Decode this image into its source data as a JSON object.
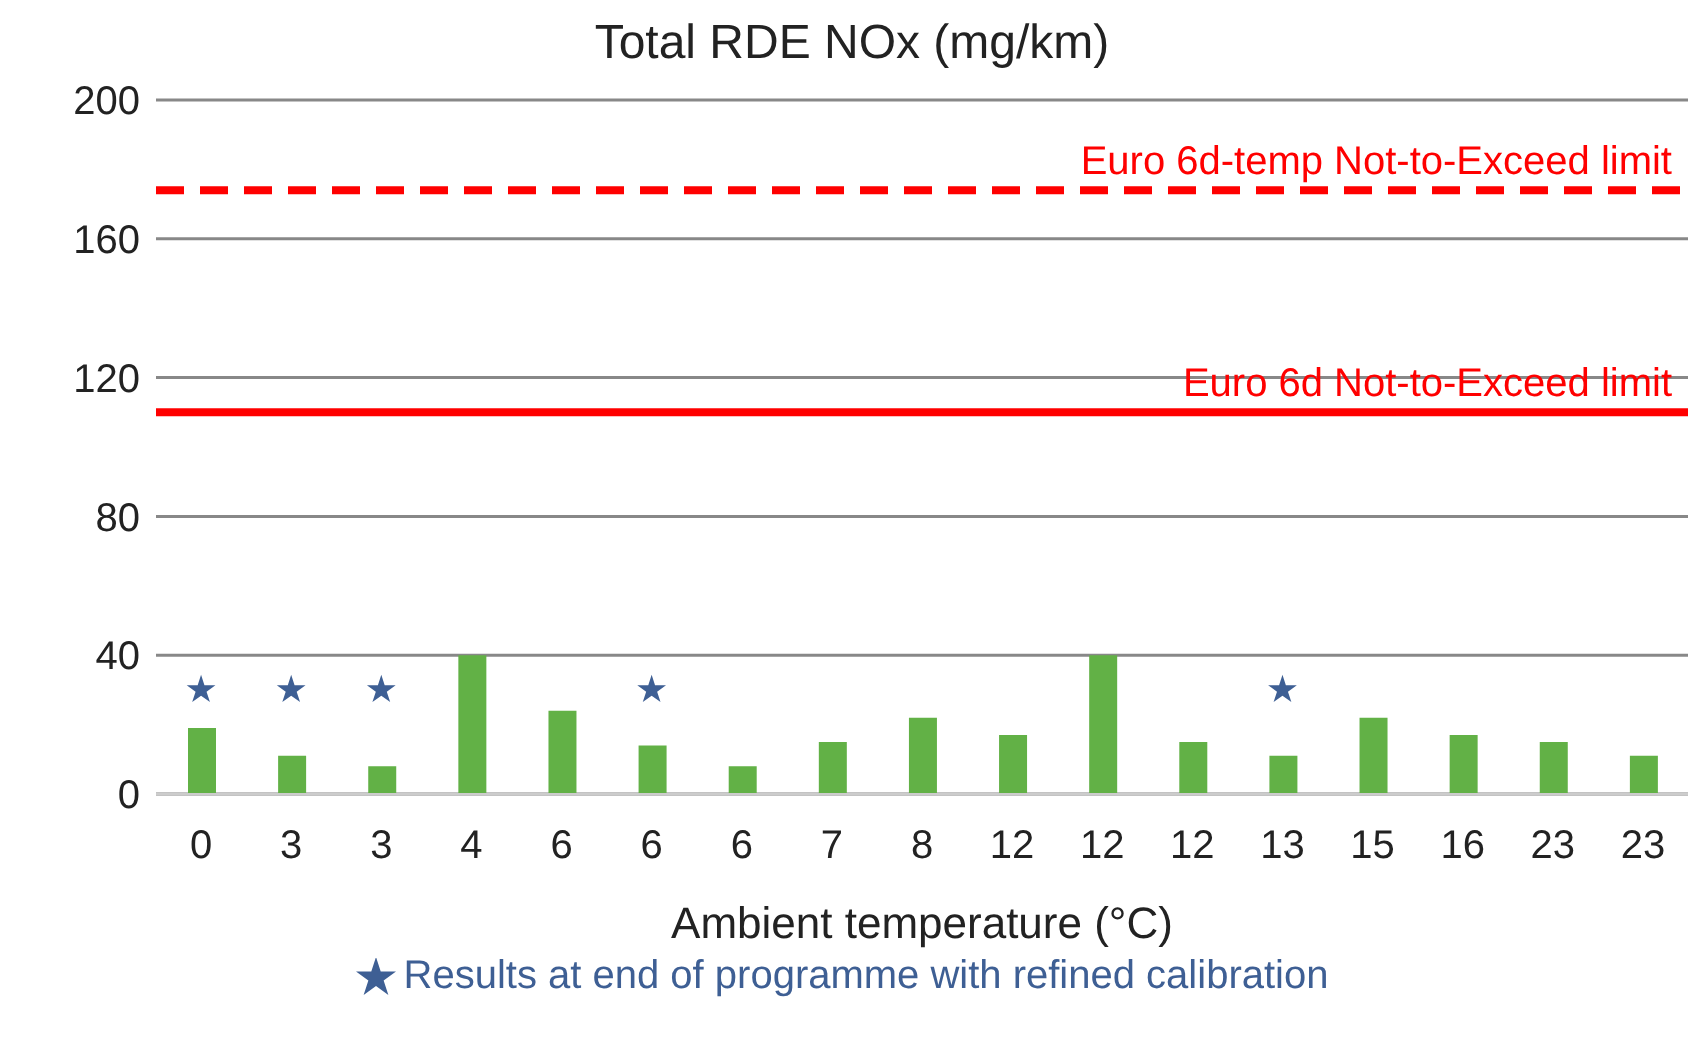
{
  "chart_data": {
    "type": "bar",
    "title": "Total RDE NOx (mg/km)",
    "xlabel": "Ambient temperature (°C)",
    "categories": [
      "0",
      "3",
      "3",
      "4",
      "6",
      "6",
      "6",
      "7",
      "8",
      "12",
      "12",
      "12",
      "13",
      "15",
      "16",
      "23",
      "23"
    ],
    "series": [
      {
        "color": "#62b146",
        "values": [
          19,
          11,
          8,
          40,
          24,
          14,
          8,
          15,
          22,
          17,
          40,
          15,
          11,
          22,
          17,
          15,
          11
        ]
      },
      {
        "type": "scatter",
        "name": "Results at end of programme with refined calibration",
        "color": "#3e5f94",
        "values": [
          30,
          30,
          30,
          null,
          null,
          30,
          null,
          null,
          null,
          null,
          null,
          null,
          30,
          null,
          null,
          null,
          null
        ]
      }
    ],
    "ylim": [
      0,
      200
    ],
    "yticks": [
      0,
      40,
      80,
      120,
      160,
      200
    ],
    "grid": "y",
    "legend": "bottom",
    "marker": "star",
    "ref_lines": [
      {
        "axis": "y",
        "value": 174,
        "label": "Euro 6d-temp Not-to-Exceed limit",
        "color": "#ff0000",
        "line_style": "dashed"
      },
      {
        "axis": "y",
        "value": 110,
        "label": "Euro 6d Not-to-Exceed limit",
        "color": "#ff0000",
        "line_style": "solid"
      }
    ]
  }
}
